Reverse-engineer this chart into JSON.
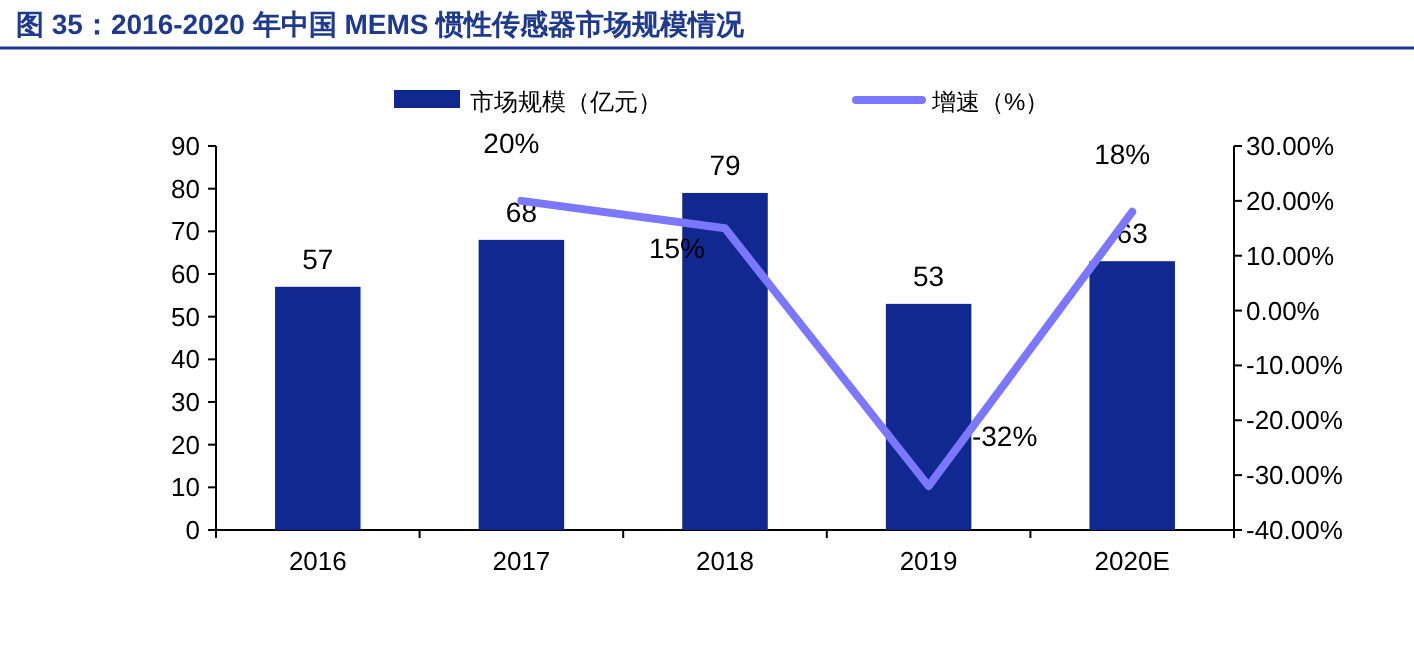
{
  "chart_data": {
    "type": "bar",
    "title": "图 35：2016-2020 年中国 MEMS 惯性传感器市场规模情况",
    "categories": [
      "2016",
      "2017",
      "2018",
      "2019",
      "2020E"
    ],
    "series": [
      {
        "name": "市场规模（亿元）",
        "color": "#10288f",
        "values": [
          57,
          68,
          79,
          53,
          63
        ],
        "data_labels": true
      },
      {
        "name": "增速（%）",
        "type": "line",
        "axis": "y2",
        "color": "#7b78ff",
        "values": [
          null,
          20,
          15,
          -32,
          18
        ],
        "value_labels": [
          null,
          "20%",
          "15%",
          "-32%",
          "18%"
        ]
      }
    ],
    "ylim": [
      0,
      90
    ],
    "yticks": [
      0,
      10,
      20,
      30,
      40,
      50,
      60,
      70,
      80,
      90
    ],
    "y2lim": [
      -40,
      30
    ],
    "y2ticks": [
      {
        "value": -40,
        "label": "-40.00%"
      },
      {
        "value": -30,
        "label": "-30.00%"
      },
      {
        "value": -20,
        "label": "-20.00%"
      },
      {
        "value": -10,
        "label": "-10.00%"
      },
      {
        "value": 0,
        "label": "0.00%"
      },
      {
        "value": 10,
        "label": "10.00%"
      },
      {
        "value": 20,
        "label": "20.00%"
      },
      {
        "value": 30,
        "label": "30.00%"
      }
    ],
    "legend": "top",
    "grid": false,
    "marker": "none"
  }
}
